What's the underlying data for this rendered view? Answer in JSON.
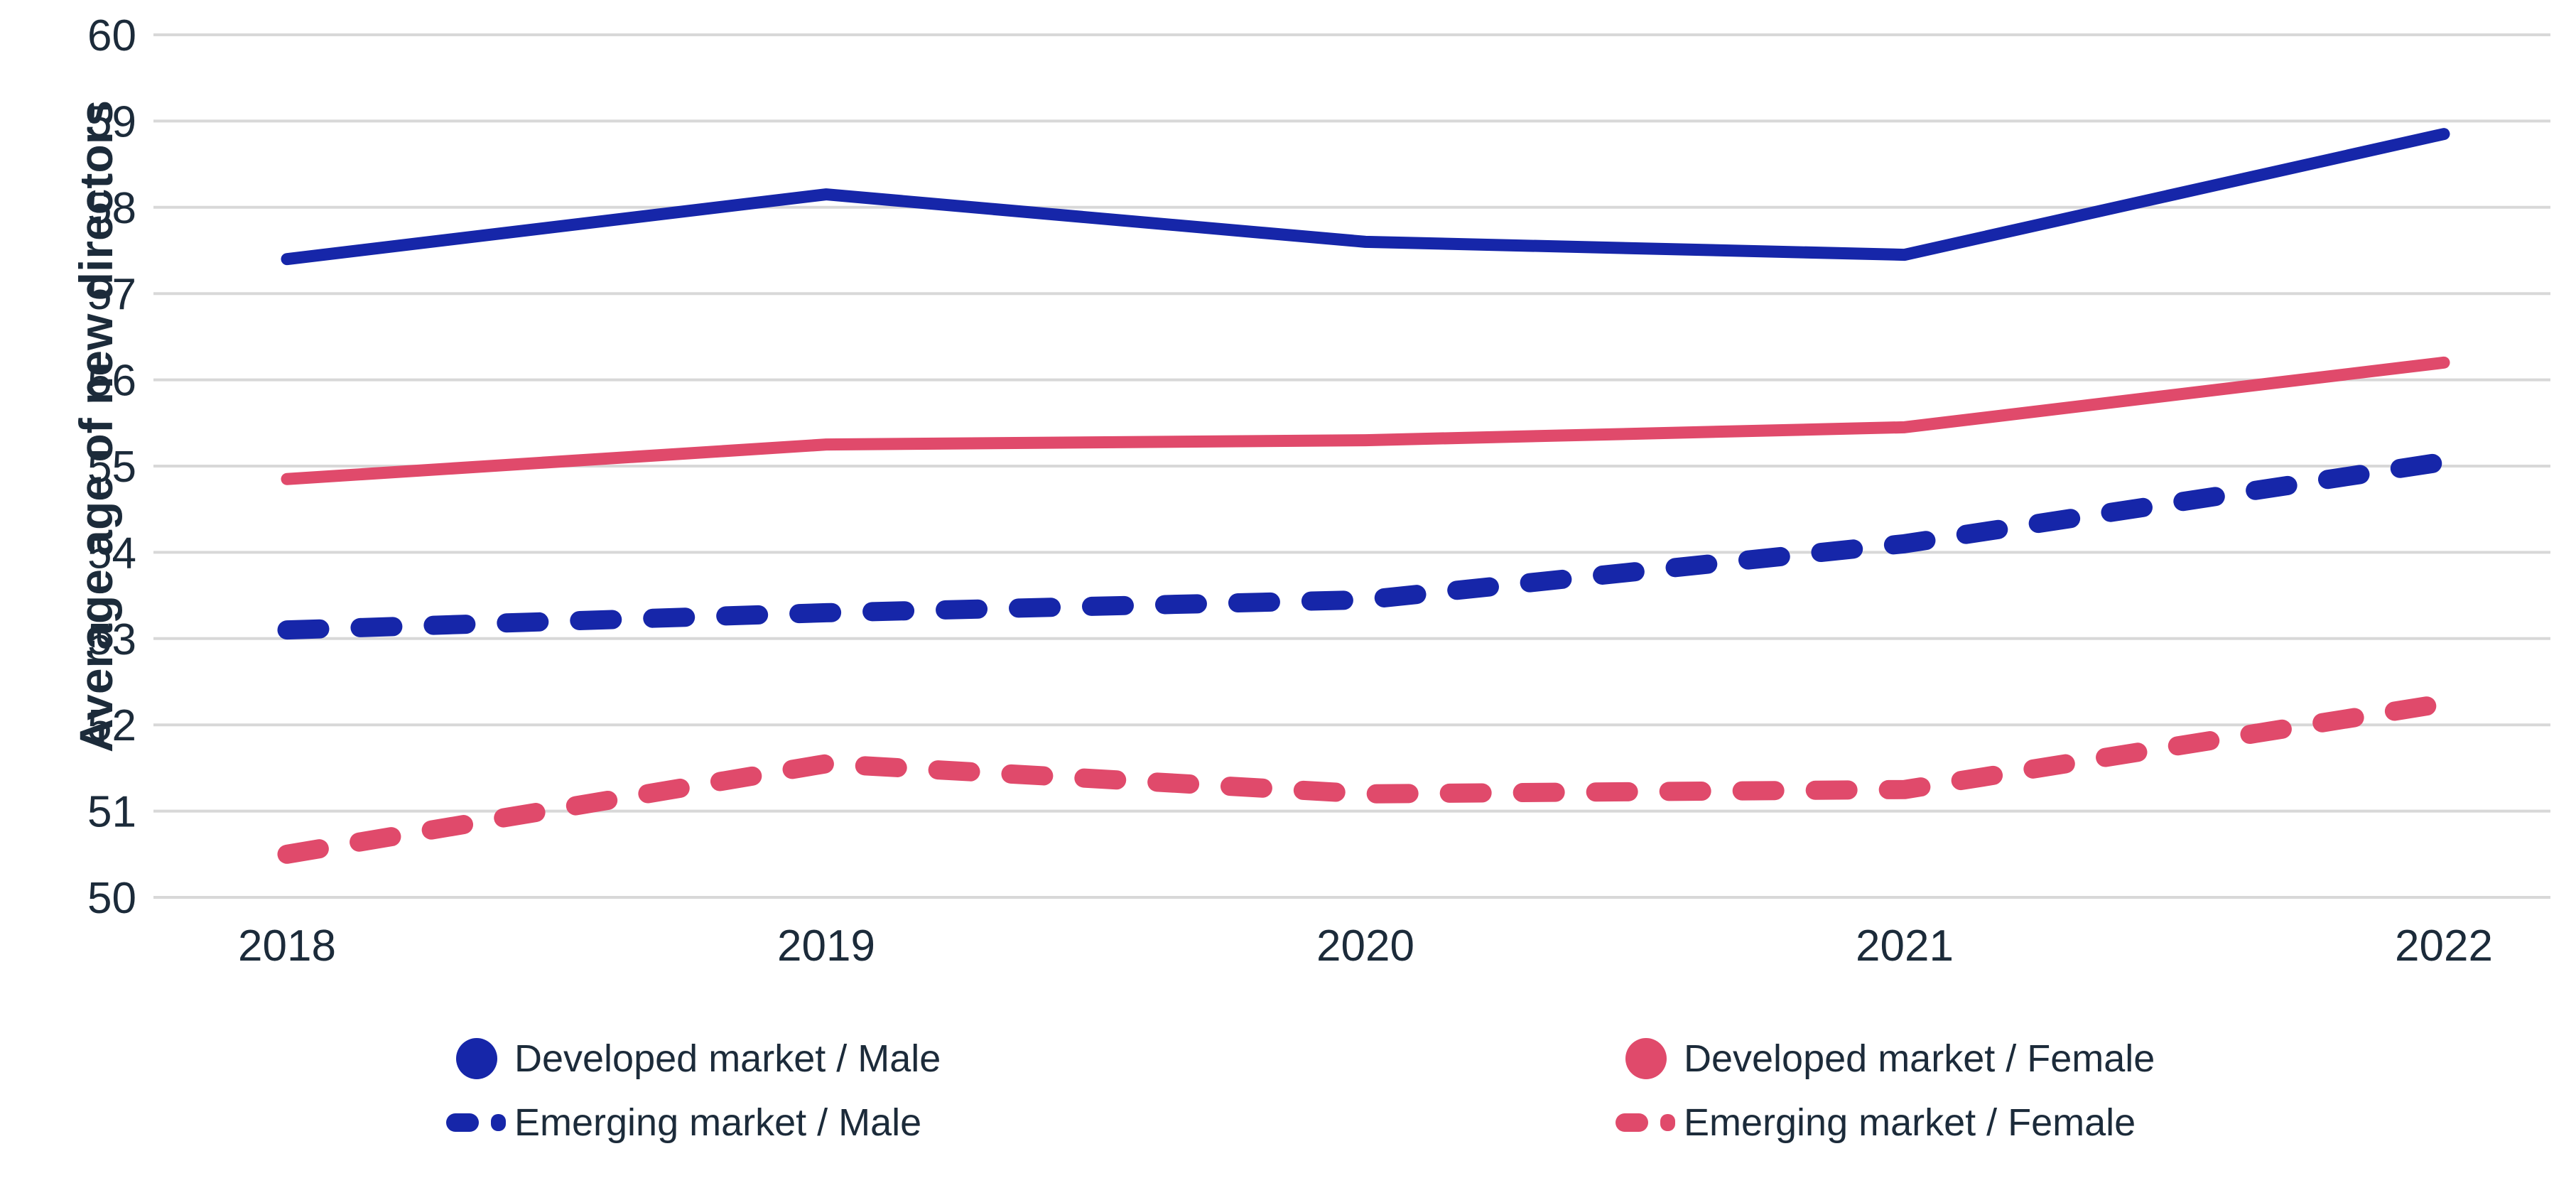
{
  "figure": {
    "background": "#FFFFFF",
    "text_color": "#1C2B3A",
    "grid_color": "#D8D8D8",
    "blue": "#1626A9",
    "pink": "#E04A6B",
    "ylabel": "Average age of new directors"
  },
  "chart_data": {
    "type": "line",
    "title": "",
    "xlabel": "",
    "ylabel": "Average age of new directors",
    "categories": [
      "2018",
      "2019",
      "2020",
      "2021",
      "2022"
    ],
    "x": [
      2018,
      2019,
      2020,
      2021,
      2022
    ],
    "ylim": [
      50,
      60
    ],
    "y_ticks": [
      60,
      59,
      58,
      57,
      56,
      55,
      54,
      53,
      52,
      51,
      50
    ],
    "grid": "horizontal",
    "legend_position": "bottom",
    "series": [
      {
        "name": "Developed market / Male",
        "values": [
          57.4,
          58.15,
          57.6,
          57.45,
          58.85
        ],
        "color": "#1626A9",
        "style": "solid",
        "marker": "circle"
      },
      {
        "name": "Emerging market / Male",
        "values": [
          53.1,
          53.3,
          53.45,
          54.1,
          55.05
        ],
        "color": "#1626A9",
        "style": "dashed",
        "marker": "dash"
      },
      {
        "name": "Developed market / Female",
        "values": [
          54.85,
          55.25,
          55.3,
          55.45,
          56.2
        ],
        "color": "#E04A6B",
        "style": "solid",
        "marker": "circle"
      },
      {
        "name": "Emerging market / Female",
        "values": [
          50.5,
          51.55,
          51.2,
          51.25,
          52.25
        ],
        "color": "#E04A6B",
        "style": "dashed",
        "marker": "dash"
      }
    ]
  }
}
